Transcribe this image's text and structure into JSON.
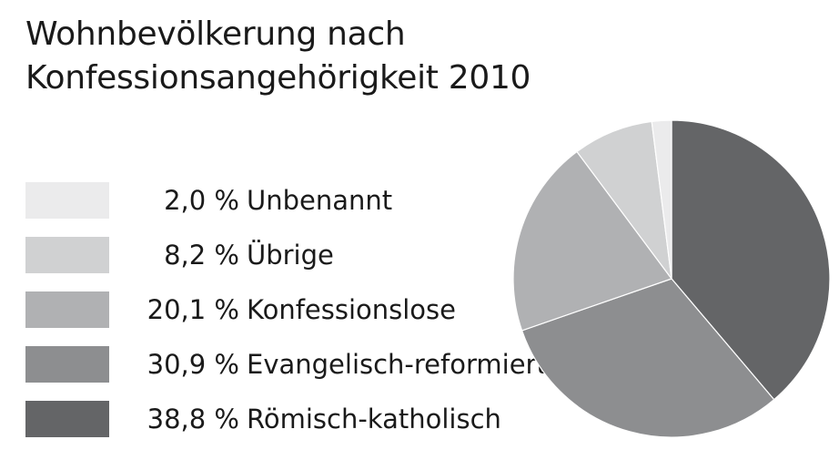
{
  "chart_data": {
    "type": "pie",
    "title_lines": [
      "Wohnbevölkerung nach",
      "Konfessionsangehörigkeit 2010"
    ],
    "slices": [
      {
        "label": "Römisch-katholisch",
        "value": 38.8,
        "value_label": "38,8 %",
        "color": "#646567"
      },
      {
        "label": "Evangelisch-reformiert",
        "value": 30.9,
        "value_label": "30,9 %",
        "color": "#8d8e90"
      },
      {
        "label": "Konfessionslose",
        "value": 20.1,
        "value_label": "20,1 %",
        "color": "#b0b1b3"
      },
      {
        "label": "Übrige",
        "value": 8.2,
        "value_label": "8,2 %",
        "color": "#d0d1d2"
      },
      {
        "label": "Unbenannt",
        "value": 2.0,
        "value_label": "2,0 %",
        "color": "#ebebec"
      }
    ],
    "legend_order": [
      "Unbenannt",
      "Übrige",
      "Konfessionslose",
      "Evangelisch-reformiert",
      "Römisch-katholisch"
    ],
    "legend_placement": "left",
    "start_angle": "12 o'clock",
    "direction": "clockwise"
  }
}
